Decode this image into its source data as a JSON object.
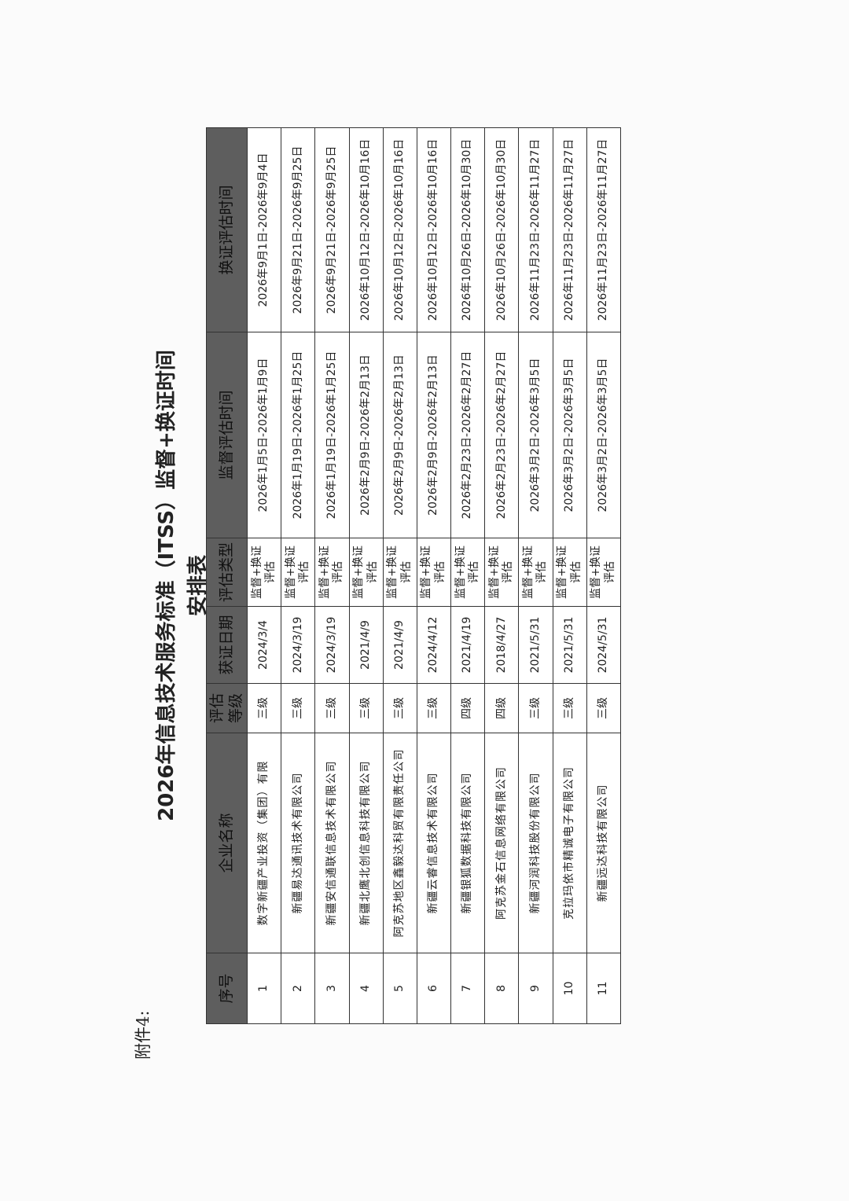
{
  "attachment_label": "附件4:",
  "title": "2026年信息技术服务标准（ITSS）监督+换证时间安排表",
  "table": {
    "headers": [
      "序号",
      "企业名称",
      "评估等级",
      "获证日期",
      "评估类型",
      "监督评估时间",
      "换证评估时间"
    ],
    "rows": [
      [
        "1",
        "数字新疆产业投资（集团）有限",
        "三级",
        "2024/3/4",
        "监督+换证评估",
        "2026年1月5日-2026年1月9日",
        "2026年9月1日-2026年9月4日"
      ],
      [
        "2",
        "新疆易达通讯技术有限公司",
        "三级",
        "2024/3/19",
        "监督+换证评估",
        "2026年1月19日-2026年1月25日",
        "2026年9月21日-2026年9月25日"
      ],
      [
        "3",
        "新疆安信通联信息技术有限公司",
        "三级",
        "2024/3/19",
        "监督+换证评估",
        "2026年1月19日-2026年1月25日",
        "2026年9月21日-2026年9月25日"
      ],
      [
        "4",
        "新疆北鹰北创信息科技有限公司",
        "三级",
        "2021/4/9",
        "监督+换证评估",
        "2026年2月9日-2026年2月13日",
        "2026年10月12日-2026年10月16日"
      ],
      [
        "5",
        "阿克苏地区鑫毅达科贸有限责任公司",
        "三级",
        "2021/4/9",
        "监督+换证评估",
        "2026年2月9日-2026年2月13日",
        "2026年10月12日-2026年10月16日"
      ],
      [
        "6",
        "新疆云睿信息技术有限公司",
        "三级",
        "2024/4/12",
        "监督+换证评估",
        "2026年2月9日-2026年2月13日",
        "2026年10月12日-2026年10月16日"
      ],
      [
        "7",
        "新疆银狐数据科技有限公司",
        "四级",
        "2021/4/19",
        "监督+换证评估",
        "2026年2月23日-2026年2月27日",
        "2026年10月26日-2026年10月30日"
      ],
      [
        "8",
        "阿克苏金石信息网络有限公司",
        "四级",
        "2018/4/27",
        "监督+换证评估",
        "2026年2月23日-2026年2月27日",
        "2026年10月26日-2026年10月30日"
      ],
      [
        "9",
        "新疆河润科技股份有限公司",
        "三级",
        "2021/5/31",
        "监督+换证评估",
        "2026年3月2日-2026年3月5日",
        "2026年11月23日-2026年11月27日"
      ],
      [
        "10",
        "克拉玛依市精诚电子有限公司",
        "三级",
        "2021/5/31",
        "监督+换证评估",
        "2026年3月2日-2026年3月5日",
        "2026年11月23日-2026年11月27日"
      ],
      [
        "11",
        "新疆远达科技有限公司",
        "三级",
        "2024/5/31",
        "监督+换证评估",
        "2026年3月2日-2026年3月5日",
        "2026年11月23日-2026年11月27日"
      ]
    ]
  }
}
